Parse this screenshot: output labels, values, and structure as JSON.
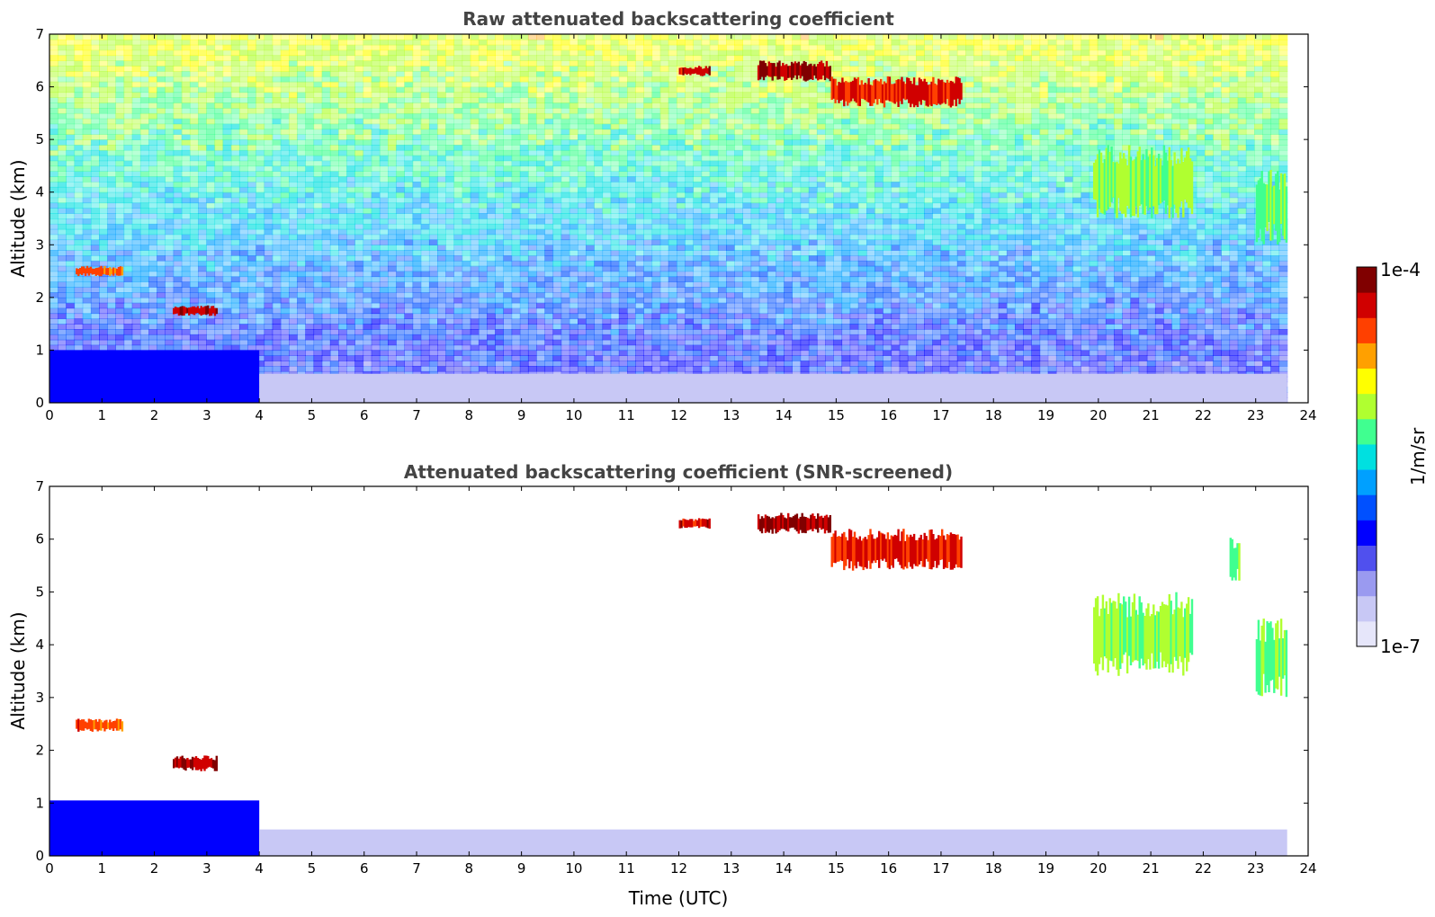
{
  "chart_data": [
    {
      "type": "heatmap",
      "title": "Raw attenuated backscattering coefficient",
      "xlabel": "",
      "ylabel": "Altitude (km)",
      "xlim": [
        0,
        24
      ],
      "ylim": [
        0,
        7
      ],
      "xticks": [
        "0",
        "1",
        "2",
        "3",
        "4",
        "5",
        "6",
        "7",
        "8",
        "9",
        "10",
        "11",
        "12",
        "13",
        "14",
        "15",
        "16",
        "17",
        "18",
        "19",
        "20",
        "21",
        "22",
        "23",
        "24"
      ],
      "yticks": [
        "0",
        "1",
        "2",
        "3",
        "4",
        "5",
        "6",
        "7"
      ],
      "data_end_hour": 23.6,
      "grid": false,
      "features": [
        {
          "t0": 0.5,
          "t1": 1.4,
          "z0": 2.4,
          "z1": 2.6,
          "level": 0.85
        },
        {
          "t0": 2.35,
          "t1": 3.2,
          "z0": 1.65,
          "z1": 1.85,
          "level": 0.95
        },
        {
          "t0": 12.0,
          "t1": 12.6,
          "z0": 6.2,
          "z1": 6.4,
          "level": 0.93
        },
        {
          "t0": 13.5,
          "t1": 14.9,
          "z0": 6.1,
          "z1": 6.5,
          "level": 0.97
        },
        {
          "t0": 14.9,
          "t1": 17.4,
          "z0": 5.6,
          "z1": 6.2,
          "level": 0.9
        },
        {
          "t0": 19.9,
          "t1": 21.8,
          "z0": 3.5,
          "z1": 4.9,
          "level": 0.62
        },
        {
          "t0": 23.0,
          "t1": 23.6,
          "z0": 3.0,
          "z1": 4.5,
          "level": 0.6
        }
      ],
      "boundary_layer": [
        {
          "t0": 0.0,
          "t1": 4.0,
          "z0": 0.0,
          "z1": 1.0,
          "level": 0.3
        },
        {
          "t0": 4.0,
          "t1": 23.6,
          "z0": 0.0,
          "z1": 0.55,
          "level": 0.05
        }
      ]
    },
    {
      "type": "heatmap",
      "title": "Attenuated backscattering coefficient (SNR-screened)",
      "xlabel": "Time (UTC)",
      "ylabel": "Altitude (km)",
      "xlim": [
        0,
        24
      ],
      "ylim": [
        0,
        7
      ],
      "xticks": [
        "0",
        "1",
        "2",
        "3",
        "4",
        "5",
        "6",
        "7",
        "8",
        "9",
        "10",
        "11",
        "12",
        "13",
        "14",
        "15",
        "16",
        "17",
        "18",
        "19",
        "20",
        "21",
        "22",
        "23",
        "24"
      ],
      "yticks": [
        "0",
        "1",
        "2",
        "3",
        "4",
        "5",
        "6",
        "7"
      ],
      "data_end_hour": 23.6,
      "grid": false,
      "features": [
        {
          "t0": 0.5,
          "t1": 1.4,
          "z0": 2.35,
          "z1": 2.6,
          "level": 0.85
        },
        {
          "t0": 2.35,
          "t1": 3.2,
          "z0": 1.6,
          "z1": 1.9,
          "level": 0.95
        },
        {
          "t0": 12.0,
          "t1": 12.6,
          "z0": 6.2,
          "z1": 6.4,
          "level": 0.93
        },
        {
          "t0": 13.5,
          "t1": 14.9,
          "z0": 6.1,
          "z1": 6.5,
          "level": 0.97
        },
        {
          "t0": 14.9,
          "t1": 17.4,
          "z0": 5.4,
          "z1": 6.2,
          "level": 0.9
        },
        {
          "t0": 22.5,
          "t1": 22.7,
          "z0": 5.2,
          "z1": 6.1,
          "level": 0.6
        },
        {
          "t0": 19.9,
          "t1": 21.8,
          "z0": 3.4,
          "z1": 5.0,
          "level": 0.62
        },
        {
          "t0": 23.0,
          "t1": 23.6,
          "z0": 3.0,
          "z1": 4.5,
          "level": 0.6
        }
      ],
      "boundary_layer": [
        {
          "t0": 0.0,
          "t1": 4.0,
          "z0": 0.0,
          "z1": 1.05,
          "level": 0.3
        },
        {
          "t0": 4.0,
          "t1": 23.6,
          "z0": 0.0,
          "z1": 0.5,
          "level": 0.05
        }
      ]
    }
  ],
  "colorbar": {
    "label": "1/m/sr",
    "max_label": "1e-4",
    "min_label": "1e-7",
    "colors": [
      "#e6e6fa",
      "#c8c8f5",
      "#9a9af0",
      "#5050ee",
      "#0000ff",
      "#0050ff",
      "#00a0ff",
      "#00e0e0",
      "#40ff90",
      "#b0ff30",
      "#ffff00",
      "#ffa000",
      "#ff4000",
      "#d00000",
      "#800000"
    ]
  }
}
